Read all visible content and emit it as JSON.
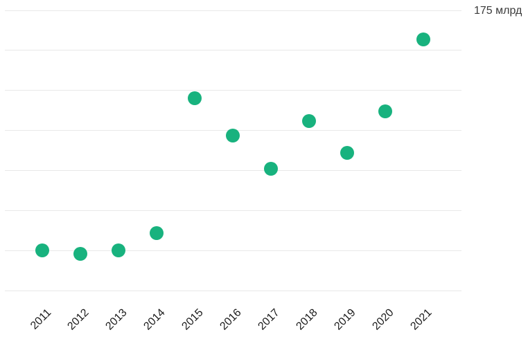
{
  "chart": {
    "colors": {
      "accent": "#18b27e",
      "gridline": "#e8e8e8",
      "tick_label": "#1c1c1c",
      "annotation": "#3a3a3a"
    }
  },
  "chart_data": {
    "type": "scatter",
    "x": [
      "2011",
      "2012",
      "2013",
      "2014",
      "2015",
      "2016",
      "2017",
      "2018",
      "2019",
      "2020",
      "2021"
    ],
    "values": [
      25,
      23,
      25,
      36,
      120,
      97,
      76,
      106,
      86,
      112,
      157
    ],
    "unit": "млрд",
    "y_max_label": "175 млрд",
    "ylim": [
      0,
      175
    ],
    "gridline_step": 25,
    "grid": true,
    "legend": false
  }
}
